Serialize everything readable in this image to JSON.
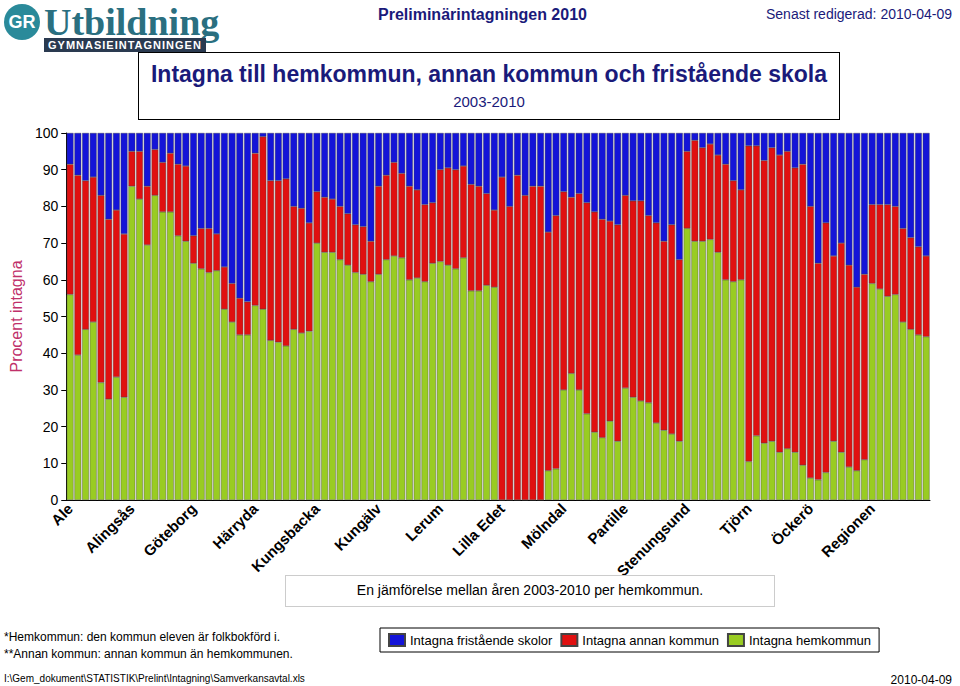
{
  "chart_data": {
    "type": "bar",
    "title": "Intagna till hemkommun, annan kommun och fristående skola",
    "subtitle": "2003-2010",
    "y_label": "Procent intagna",
    "annotations": [
      "En jämförelse mellan åren 2003-2010 per hemkommun."
    ],
    "stacked": true,
    "grid": false,
    "legend": "bottom",
    "ylim": [
      0,
      100
    ],
    "yticks": [
      0,
      10,
      20,
      30,
      40,
      50,
      60,
      70,
      80,
      90,
      100
    ],
    "categories": [
      "Ale",
      null,
      null,
      null,
      null,
      null,
      null,
      null,
      "Alingsås",
      null,
      null,
      null,
      null,
      null,
      null,
      null,
      "Göteborg",
      null,
      null,
      null,
      null,
      null,
      null,
      null,
      "Härryda",
      null,
      null,
      null,
      null,
      null,
      null,
      null,
      "Kungsbacka",
      null,
      null,
      null,
      null,
      null,
      null,
      null,
      "Kungälv",
      null,
      null,
      null,
      null,
      null,
      null,
      null,
      "Lerum",
      null,
      null,
      null,
      null,
      null,
      null,
      null,
      "Lilla Edet",
      null,
      null,
      null,
      null,
      null,
      null,
      null,
      "Mölndal",
      null,
      null,
      null,
      null,
      null,
      null,
      null,
      "Partille",
      null,
      null,
      null,
      null,
      null,
      null,
      null,
      "Stenungsund",
      null,
      null,
      null,
      null,
      null,
      null,
      null,
      "Tjörn",
      null,
      null,
      null,
      null,
      null,
      null,
      null,
      "Öckerö",
      null,
      null,
      null,
      null,
      null,
      null,
      null,
      "Regionen",
      null,
      null,
      null,
      null,
      null,
      null,
      null
    ],
    "series": [
      {
        "name": "Intagna hemkommun",
        "color": "#99cc22",
        "values": [
          56,
          39.5,
          46.5,
          48.5,
          32,
          27.5,
          33.5,
          28,
          85.5,
          82,
          69.5,
          83,
          78.5,
          78.5,
          72,
          70.5,
          64.5,
          63,
          62,
          62.5,
          52,
          48.5,
          45,
          45,
          53,
          52,
          43.5,
          43,
          42,
          46.5,
          45.5,
          46,
          70,
          67.5,
          67.5,
          65.5,
          64,
          62,
          61.5,
          59.5,
          61.5,
          65.5,
          66.5,
          66,
          60,
          60.5,
          59.5,
          64.5,
          65,
          64,
          63,
          66,
          57,
          57,
          58.5,
          58,
          0,
          0,
          0,
          0,
          0,
          0,
          8,
          8.5,
          30,
          34.5,
          30,
          23.5,
          18.5,
          17,
          21.5,
          16,
          30.5,
          28,
          27,
          26.5,
          21,
          19,
          18,
          16,
          74,
          70.5,
          70.5,
          71,
          67.5,
          60,
          59.5,
          60,
          10.5,
          17.5,
          15.5,
          16,
          13,
          14,
          13,
          9.5,
          6,
          5.5,
          7.5,
          16,
          13,
          9,
          8,
          11,
          59,
          57.5,
          55.5,
          56,
          48.5,
          46.5,
          45,
          44.5
        ]
      },
      {
        "name": "Intagna annan kommun",
        "color": "#e01010",
        "values": [
          35.5,
          49,
          40.5,
          39.5,
          51,
          49,
          45.5,
          44.5,
          9.5,
          13,
          16,
          12.5,
          13.5,
          16,
          19.5,
          20.5,
          7.5,
          11,
          12,
          10,
          11.5,
          10.5,
          10,
          9,
          41.5,
          47,
          43.5,
          44,
          45.5,
          33.5,
          34,
          29.5,
          14,
          15,
          14.5,
          14.5,
          14,
          13,
          13,
          11,
          24,
          23,
          25.5,
          23,
          25.5,
          24,
          21,
          16.5,
          25,
          26.5,
          27,
          25,
          29,
          28.5,
          25,
          21,
          88,
          80,
          88.5,
          83,
          85.5,
          85.5,
          65,
          69,
          54,
          48,
          53.5,
          57.5,
          60,
          59.5,
          54.5,
          59,
          52.5,
          53.5,
          54.5,
          51,
          54.5,
          51.5,
          57,
          49.5,
          21,
          27.5,
          25.5,
          26,
          26.5,
          31.5,
          27.5,
          24.5,
          86,
          79,
          77,
          80,
          81,
          81,
          77.5,
          82,
          74,
          59,
          68,
          50.5,
          57,
          55,
          50,
          50.5,
          21.5,
          23,
          25,
          24,
          25.5,
          25,
          24,
          22
        ]
      },
      {
        "name": "Intagna fristående skolor",
        "color": "#1414d8",
        "values": [
          8.5,
          11.5,
          13,
          12,
          17,
          23.5,
          21,
          27.5,
          5,
          5,
          14.5,
          4.5,
          8,
          5.5,
          8.5,
          9,
          28,
          26,
          26,
          27.5,
          36.5,
          41,
          45,
          46,
          5.5,
          1,
          13,
          13,
          12.5,
          20,
          20.5,
          24.5,
          16,
          17.5,
          18,
          20,
          22,
          25,
          25.5,
          29.5,
          14.5,
          11.5,
          8,
          11,
          14.5,
          15.5,
          19.5,
          19,
          10,
          9.5,
          10,
          9,
          14,
          14.5,
          16.5,
          21,
          12,
          20,
          11.5,
          17,
          14.5,
          14.5,
          27,
          22.5,
          16,
          17.5,
          16.5,
          19,
          21.5,
          23.5,
          24,
          25,
          17,
          18.5,
          18.5,
          22.5,
          24.5,
          29.5,
          25,
          34.5,
          5,
          2,
          4,
          3,
          6,
          8.5,
          13,
          15.5,
          3.5,
          3.5,
          7.5,
          4,
          6,
          5,
          9.5,
          8.5,
          20,
          35.5,
          24.5,
          33.5,
          30,
          36,
          42,
          38.5,
          19.5,
          19.5,
          19.5,
          20,
          26,
          28.5,
          31,
          33.5
        ]
      }
    ]
  },
  "page": {
    "logo_mark": "GR",
    "logo": "Utbildning",
    "logo_sub": "GYMNASIEINTAGNINGEN",
    "header": "Preliminärintagningen 2010",
    "edited": "Senast redigerad: 2010-04-09",
    "footnotes": [
      "*Hemkommun: den kommun eleven är folkbokförd i.",
      "**Annan kommun: annan kommun än hemkommunen."
    ],
    "path": "I:\\Gem_dokument\\STATISTIK\\Prelint\\Intagning\\Samverkansavtal.xls",
    "date": "2010-04-09"
  }
}
